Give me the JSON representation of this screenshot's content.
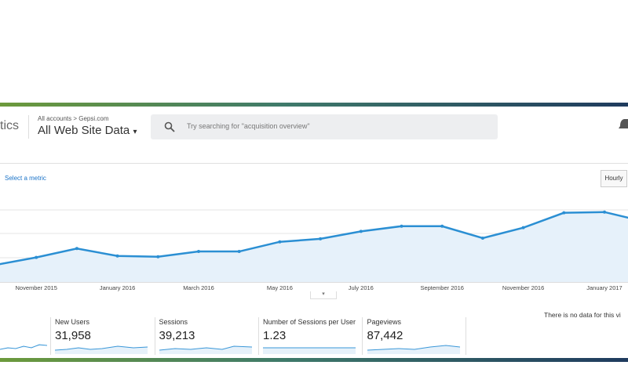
{
  "header": {
    "app_name": "tics",
    "breadcrumb": "All accounts > Gepsi.com",
    "view": "All Web Site Data",
    "search_placeholder": "Try searching for \"acquisition overview\""
  },
  "chart_controls": {
    "select_metric": "Select a metric",
    "granularity": "Hourly"
  },
  "chart_data": {
    "type": "line",
    "categories": [
      null,
      "November 2015",
      null,
      "January 2016",
      null,
      "March 2016",
      null,
      "May 2016",
      null,
      "July 2016",
      null,
      "September 2016",
      null,
      "November 2016",
      null,
      "January 2017",
      null
    ],
    "values": [
      23,
      33,
      45,
      35,
      34,
      41,
      41,
      54,
      58,
      68,
      75,
      75,
      59,
      73,
      93,
      94,
      81
    ],
    "color": "#2b8fd3",
    "ylim": [
      0,
      100
    ]
  },
  "metrics": [
    {
      "label": "New Users",
      "value": "31,958"
    },
    {
      "label": "Sessions",
      "value": "39,213"
    },
    {
      "label": "Number of Sessions per User",
      "value": "1.23"
    },
    {
      "label": "Pageviews",
      "value": "87,442"
    }
  ],
  "notice": "There is no data for this vi"
}
